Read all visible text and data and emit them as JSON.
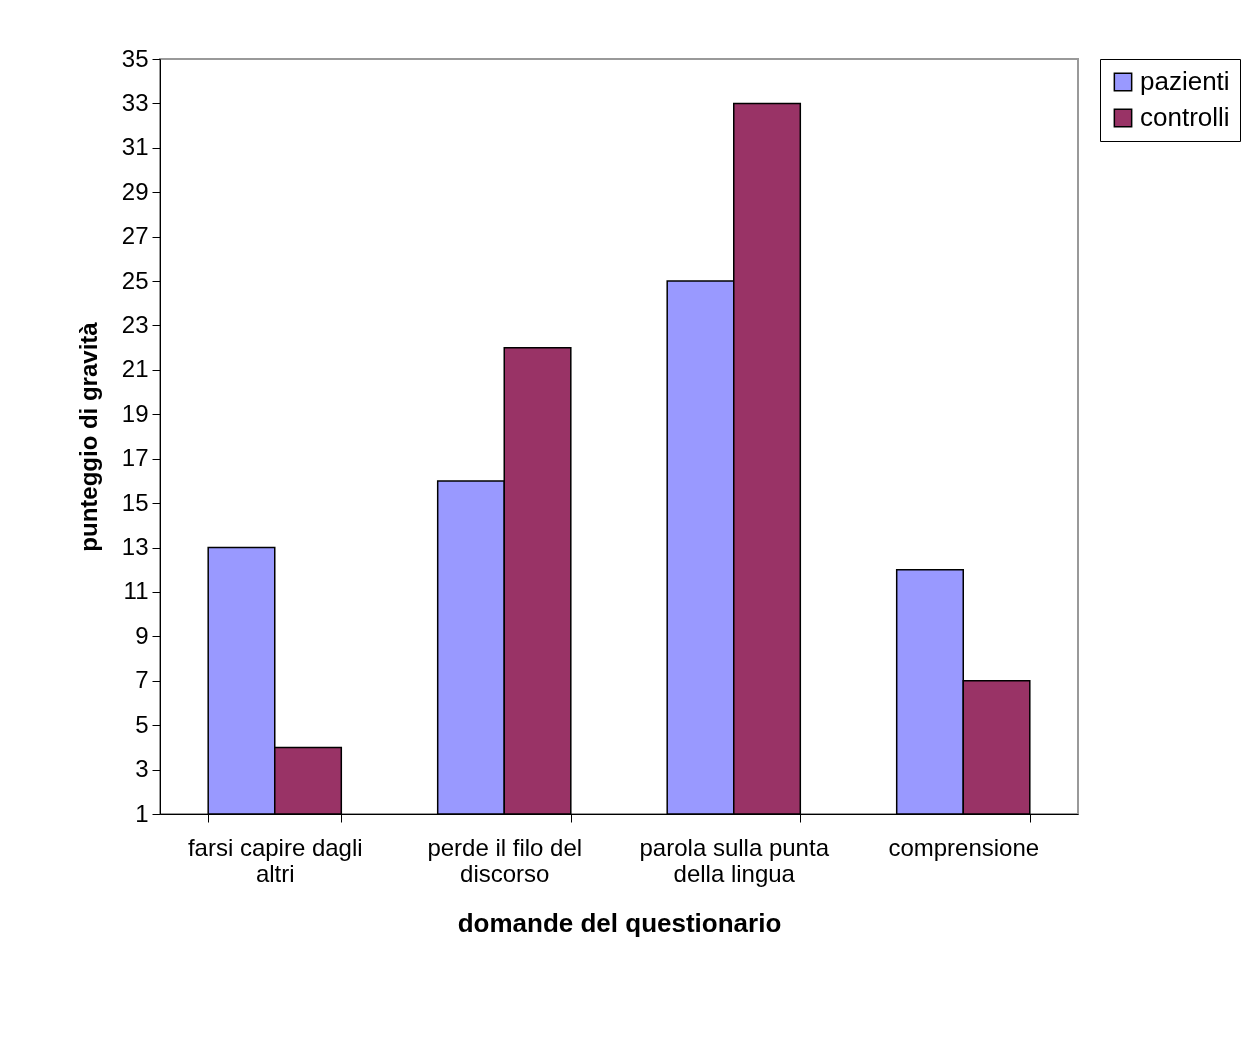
{
  "chart_data": {
    "type": "bar",
    "xlabel": "domande del questionario",
    "ylabel": "punteggio di gravità",
    "categories": [
      "farsi capire dagli altri",
      "perde il filo del discorso",
      "parola sulla punta della lingua",
      "comprensione"
    ],
    "series": [
      {
        "name": "pazienti",
        "color": "#9999ff",
        "values": [
          13,
          16,
          25,
          12
        ]
      },
      {
        "name": "controlli",
        "color": "#993366",
        "values": [
          4,
          22,
          33,
          7
        ]
      }
    ],
    "ylim": [
      1,
      35
    ],
    "yticks": [
      1,
      3,
      5,
      7,
      9,
      11,
      13,
      15,
      17,
      19,
      21,
      23,
      25,
      27,
      29,
      31,
      33,
      35
    ],
    "grid": false,
    "legend": "right"
  }
}
